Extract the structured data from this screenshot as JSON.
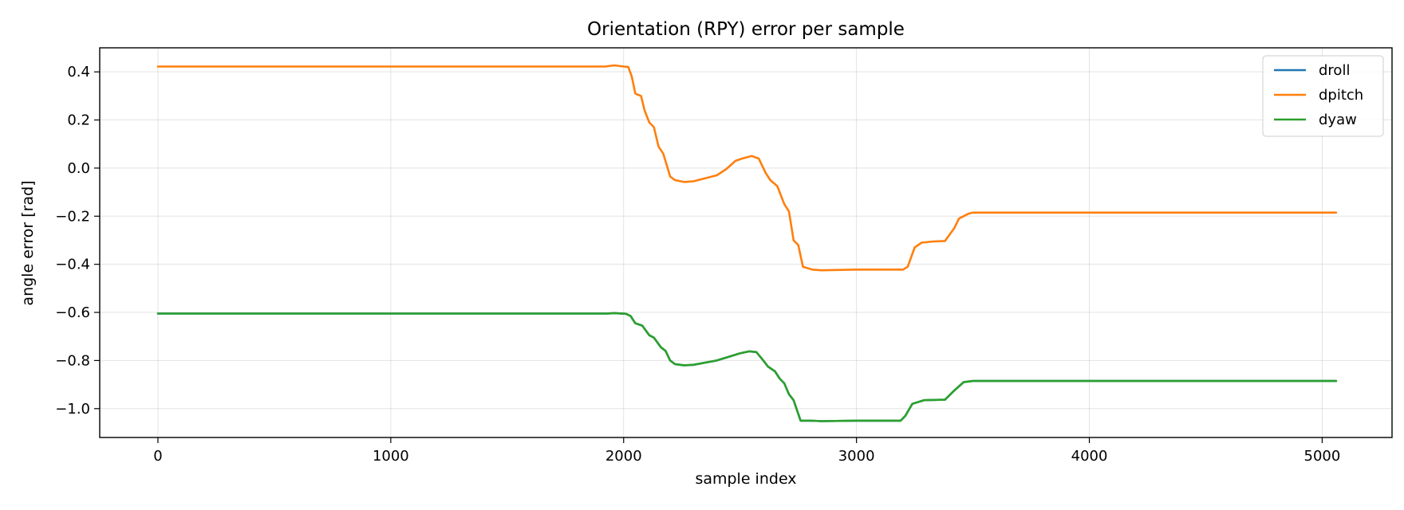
{
  "chart_data": {
    "type": "line",
    "title": "Orientation (RPY) error per sample",
    "xlabel": "sample index",
    "ylabel": "angle error [rad]",
    "xlim": [
      -250,
      5300
    ],
    "ylim": [
      -1.12,
      0.5
    ],
    "xticks": [
      0,
      1000,
      2000,
      3000,
      4000,
      5000
    ],
    "xtick_labels": [
      "0",
      "1000",
      "2000",
      "3000",
      "4000",
      "5000"
    ],
    "yticks": [
      0.4,
      0.2,
      0.0,
      -0.2,
      -0.4,
      -0.6,
      -0.8,
      -1.0
    ],
    "ytick_labels": [
      "0.4",
      "0.2",
      "0.0",
      "−0.2",
      "−0.4",
      "−0.6",
      "−0.8",
      "−1.0"
    ],
    "grid": true,
    "legend_position": "top-right",
    "series": [
      {
        "name": "droll",
        "color": "#1f77b4",
        "points": [
          [
            0,
            -0.605
          ],
          [
            1930,
            -0.605
          ],
          [
            1960,
            -0.603
          ],
          [
            2010,
            -0.606
          ],
          [
            2030,
            -0.615
          ],
          [
            2050,
            -0.645
          ],
          [
            2080,
            -0.655
          ],
          [
            2110,
            -0.695
          ],
          [
            2130,
            -0.705
          ],
          [
            2160,
            -0.745
          ],
          [
            2180,
            -0.76
          ],
          [
            2200,
            -0.8
          ],
          [
            2220,
            -0.815
          ],
          [
            2260,
            -0.82
          ],
          [
            2300,
            -0.818
          ],
          [
            2400,
            -0.8
          ],
          [
            2450,
            -0.785
          ],
          [
            2500,
            -0.77
          ],
          [
            2540,
            -0.762
          ],
          [
            2570,
            -0.765
          ],
          [
            2600,
            -0.8
          ],
          [
            2620,
            -0.825
          ],
          [
            2650,
            -0.845
          ],
          [
            2670,
            -0.875
          ],
          [
            2690,
            -0.895
          ],
          [
            2710,
            -0.94
          ],
          [
            2730,
            -0.965
          ],
          [
            2760,
            -1.05
          ],
          [
            2800,
            -1.05
          ],
          [
            2850,
            -1.052
          ],
          [
            3000,
            -1.05
          ],
          [
            3190,
            -1.05
          ],
          [
            3210,
            -1.03
          ],
          [
            3240,
            -0.98
          ],
          [
            3290,
            -0.965
          ],
          [
            3380,
            -0.963
          ],
          [
            3420,
            -0.925
          ],
          [
            3460,
            -0.89
          ],
          [
            3500,
            -0.885
          ],
          [
            5060,
            -0.885
          ]
        ]
      },
      {
        "name": "dpitch",
        "color": "#ff7f0e",
        "points": [
          [
            0,
            0.422
          ],
          [
            1920,
            0.422
          ],
          [
            1960,
            0.427
          ],
          [
            2000,
            0.422
          ],
          [
            2020,
            0.42
          ],
          [
            2035,
            0.38
          ],
          [
            2050,
            0.31
          ],
          [
            2075,
            0.3
          ],
          [
            2090,
            0.24
          ],
          [
            2110,
            0.19
          ],
          [
            2130,
            0.17
          ],
          [
            2150,
            0.09
          ],
          [
            2170,
            0.06
          ],
          [
            2200,
            -0.035
          ],
          [
            2220,
            -0.05
          ],
          [
            2260,
            -0.058
          ],
          [
            2300,
            -0.055
          ],
          [
            2400,
            -0.03
          ],
          [
            2440,
            -0.005
          ],
          [
            2480,
            0.03
          ],
          [
            2510,
            0.04
          ],
          [
            2550,
            0.05
          ],
          [
            2580,
            0.04
          ],
          [
            2610,
            -0.02
          ],
          [
            2630,
            -0.05
          ],
          [
            2660,
            -0.075
          ],
          [
            2690,
            -0.15
          ],
          [
            2710,
            -0.18
          ],
          [
            2730,
            -0.3
          ],
          [
            2750,
            -0.32
          ],
          [
            2770,
            -0.41
          ],
          [
            2810,
            -0.422
          ],
          [
            2850,
            -0.425
          ],
          [
            3000,
            -0.422
          ],
          [
            3200,
            -0.422
          ],
          [
            3220,
            -0.41
          ],
          [
            3250,
            -0.33
          ],
          [
            3280,
            -0.31
          ],
          [
            3330,
            -0.305
          ],
          [
            3380,
            -0.303
          ],
          [
            3420,
            -0.25
          ],
          [
            3440,
            -0.21
          ],
          [
            3480,
            -0.19
          ],
          [
            3500,
            -0.185
          ],
          [
            5060,
            -0.185
          ]
        ]
      },
      {
        "name": "dyaw",
        "color": "#2ca02c",
        "points": [
          [
            0,
            -0.605
          ],
          [
            1930,
            -0.605
          ],
          [
            1960,
            -0.603
          ],
          [
            2010,
            -0.606
          ],
          [
            2030,
            -0.615
          ],
          [
            2050,
            -0.645
          ],
          [
            2080,
            -0.655
          ],
          [
            2110,
            -0.695
          ],
          [
            2130,
            -0.705
          ],
          [
            2160,
            -0.745
          ],
          [
            2180,
            -0.76
          ],
          [
            2200,
            -0.8
          ],
          [
            2220,
            -0.815
          ],
          [
            2260,
            -0.82
          ],
          [
            2300,
            -0.818
          ],
          [
            2400,
            -0.8
          ],
          [
            2450,
            -0.785
          ],
          [
            2500,
            -0.77
          ],
          [
            2540,
            -0.762
          ],
          [
            2570,
            -0.765
          ],
          [
            2600,
            -0.8
          ],
          [
            2620,
            -0.825
          ],
          [
            2650,
            -0.845
          ],
          [
            2670,
            -0.875
          ],
          [
            2690,
            -0.895
          ],
          [
            2710,
            -0.94
          ],
          [
            2730,
            -0.965
          ],
          [
            2760,
            -1.05
          ],
          [
            2800,
            -1.05
          ],
          [
            2850,
            -1.052
          ],
          [
            3000,
            -1.05
          ],
          [
            3190,
            -1.05
          ],
          [
            3210,
            -1.03
          ],
          [
            3240,
            -0.98
          ],
          [
            3290,
            -0.965
          ],
          [
            3380,
            -0.963
          ],
          [
            3420,
            -0.925
          ],
          [
            3460,
            -0.89
          ],
          [
            3500,
            -0.885
          ],
          [
            5060,
            -0.885
          ]
        ]
      }
    ]
  }
}
